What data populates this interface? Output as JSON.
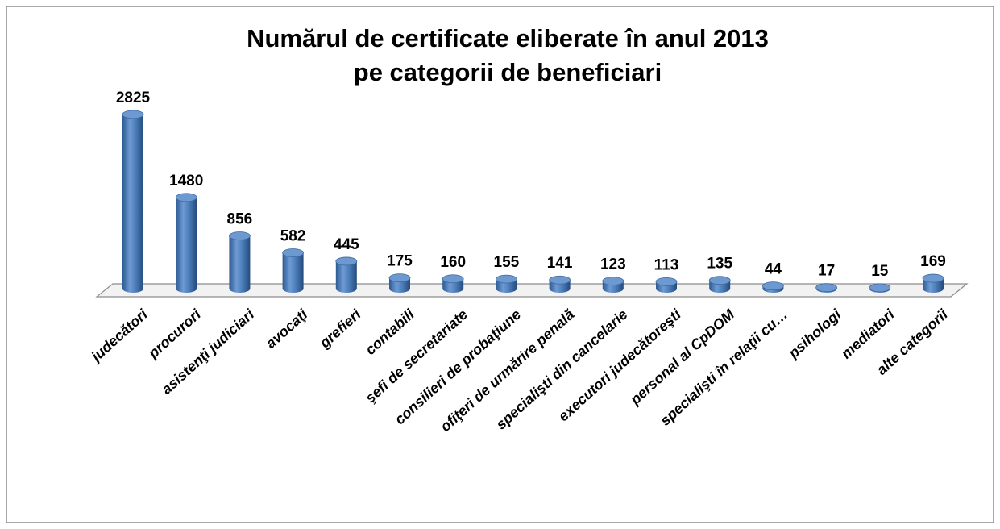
{
  "chart_data": {
    "type": "cylinder-bar",
    "title": [
      "Numărul  de certificate eliberate în anul 2013",
      "pe categorii de beneficiari"
    ],
    "categories": [
      "judecători",
      "procurori",
      "asistenţi judiciari",
      "avocaţi",
      "grefieri",
      "contabili",
      "şefi de secretariate",
      "consilieri de probaţiune",
      "ofiţeri de urmărire penală",
      "specialişti din cancelarie",
      "executori judecătoreşti",
      "personal al CpDOM",
      "specialişti în relaţii cu…",
      "psihologi",
      "mediatori",
      "alte categorii"
    ],
    "values": [
      2825,
      1480,
      856,
      582,
      445,
      175,
      160,
      155,
      141,
      123,
      113,
      135,
      44,
      17,
      15,
      169
    ],
    "color": "#4f81bd"
  }
}
